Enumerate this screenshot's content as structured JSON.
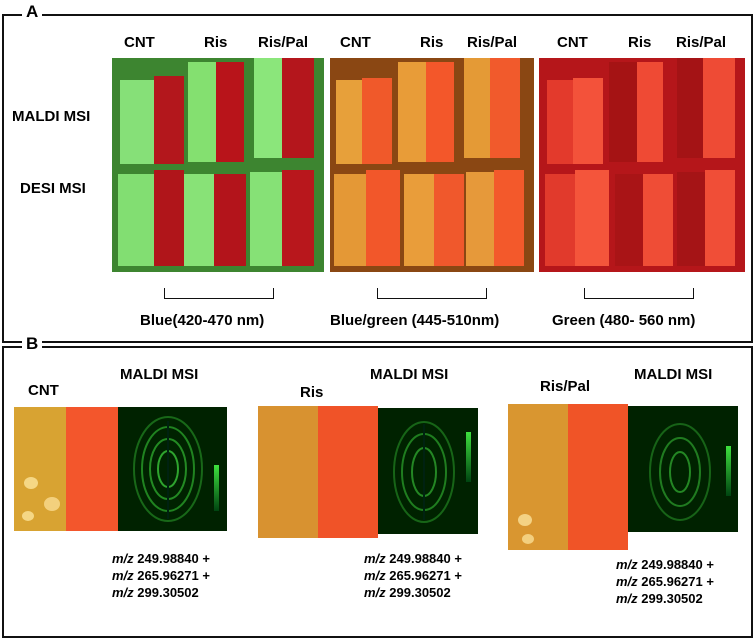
{
  "panel_a": {
    "letter": "A",
    "group_labels": [
      "CNT",
      "Ris",
      "Ris/Pal"
    ],
    "row_labels": [
      "MALDI MSI",
      "DESI MSI"
    ],
    "captions": [
      "Blue(420-470 nm)",
      "Blue/green (445-510nm)",
      "Green (480- 560 nm)"
    ],
    "colors": {
      "blue_bg": "#3f8a2f",
      "bluegreen_bg": "#8a4a12",
      "green_bg": "#c2191a"
    }
  },
  "panel_b": {
    "letter": "B",
    "header": "MALDI MSI",
    "samples": [
      {
        "label": "CNT",
        "mz_lines": [
          "249.98840 +",
          "265.96271 +",
          "299.30502"
        ]
      },
      {
        "label": "Ris",
        "mz_lines": [
          "249.98840 +",
          "265.96271 +",
          "299.30502"
        ]
      },
      {
        "label": "Ris/Pal",
        "mz_lines": [
          "249.98840 +",
          "265.96271 +",
          "299.30502"
        ]
      }
    ],
    "mz_prefix": "m/z"
  }
}
